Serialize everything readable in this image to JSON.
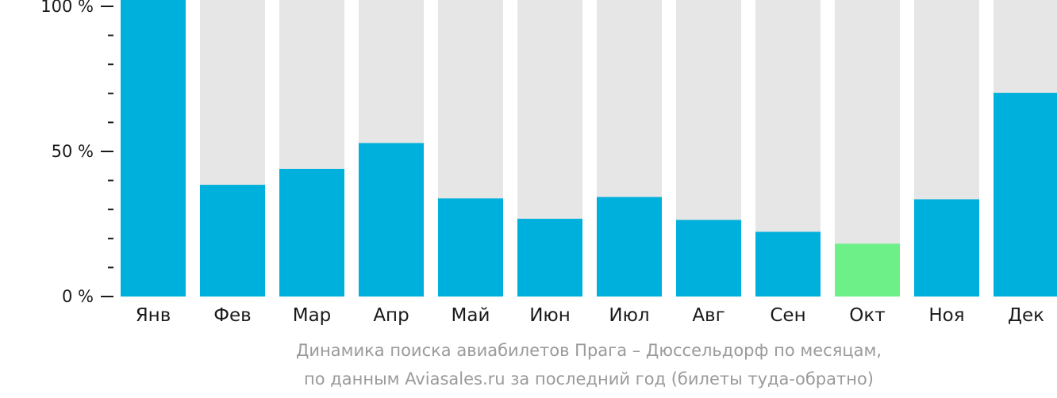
{
  "chart_data": {
    "type": "bar",
    "categories": [
      "Янв",
      "Фев",
      "Мар",
      "Апр",
      "Май",
      "Июн",
      "Июл",
      "Авг",
      "Сен",
      "Окт",
      "Ноя",
      "Дек"
    ],
    "values": [
      100,
      38.5,
      44,
      52.9,
      33.8,
      26.8,
      34.3,
      26.4,
      22.3,
      18.2,
      33.5,
      70.2
    ],
    "y_tick_labels": [
      "0 %",
      "50 %",
      "100 %"
    ],
    "ylim": [
      0,
      100
    ],
    "highlight_category": "Окт",
    "colors": {
      "bar": "#00b0dc",
      "highlight": "#6ef088",
      "track": "#e6e6e6",
      "axis": "#1a1a1a"
    },
    "caption_lines": [
      "Динамика поиска авиабилетов Прага – Дюссельдорф по месяцам,",
      "по данным Aviasales.ru за последний год (билеты туда-обратно)"
    ]
  }
}
